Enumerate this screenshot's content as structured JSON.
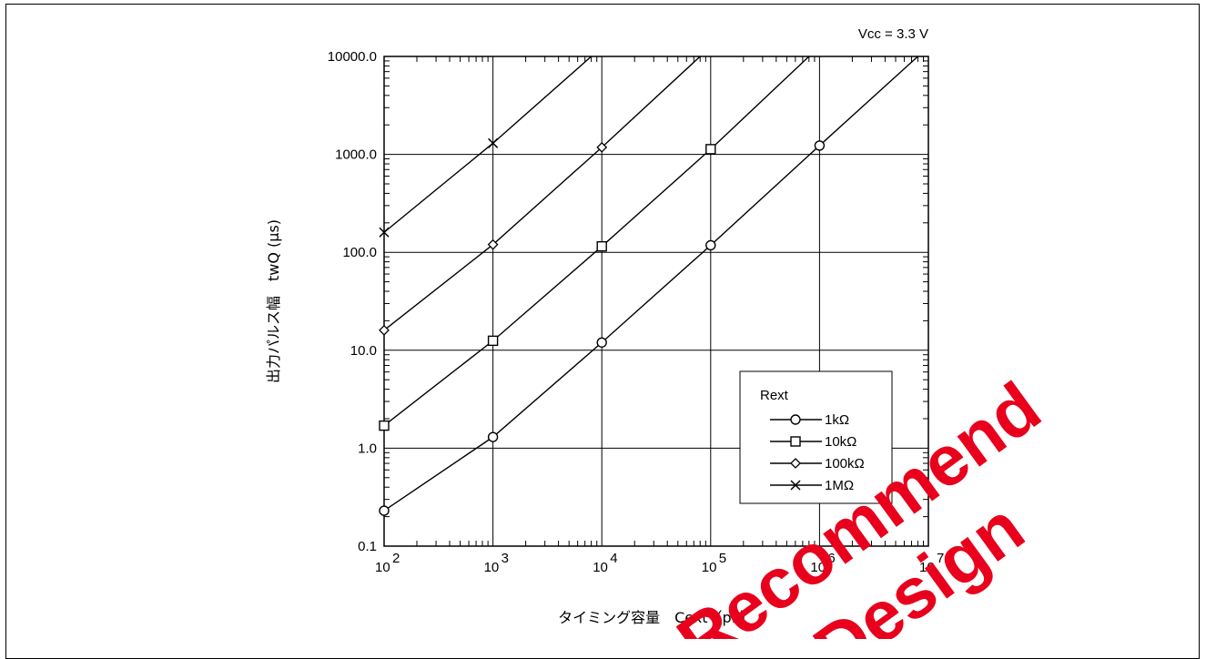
{
  "chart_data": {
    "type": "line",
    "title": "",
    "annotation": "Vcc = 3.3 V",
    "xlabel": "タイミング容量　Cext（pF）",
    "ylabel": "出力パルス幅　twQ (μs)",
    "xscale": "log",
    "yscale": "log",
    "xlim": [
      100,
      10000000
    ],
    "ylim": [
      0.1,
      10000
    ],
    "x_tick_labels": [
      {
        "base": "10",
        "exp": "2"
      },
      {
        "base": "10",
        "exp": "3"
      },
      {
        "base": "10",
        "exp": "4"
      },
      {
        "base": "10",
        "exp": "5"
      },
      {
        "base": "10",
        "exp": "6"
      },
      {
        "base": "10",
        "exp": "7"
      }
    ],
    "y_tick_labels": [
      "0.1",
      "1.0",
      "10.0",
      "100.0",
      "1000.0",
      "10000.0"
    ],
    "grid": true,
    "legend_title": "Rext",
    "legend_position": "lower-right",
    "series": [
      {
        "name": "1kΩ",
        "marker": "circle",
        "x": [
          100,
          1000,
          10000,
          100000,
          1000000,
          8000000
        ],
        "y": [
          0.23,
          1.3,
          12,
          118,
          1230,
          10000
        ]
      },
      {
        "name": "10kΩ",
        "marker": "square",
        "x": [
          100,
          1000,
          10000,
          100000,
          800000
        ],
        "y": [
          1.7,
          12.5,
          115,
          1130,
          10000
        ]
      },
      {
        "name": "100kΩ",
        "marker": "diamond",
        "x": [
          100,
          1000,
          10000,
          80000
        ],
        "y": [
          16,
          120,
          1180,
          10000
        ]
      },
      {
        "name": "1MΩ",
        "marker": "cross",
        "x": [
          100,
          1000,
          8000
        ],
        "y": [
          160,
          1300,
          10000
        ]
      }
    ]
  },
  "watermark": {
    "text_1": "Recommend",
    "text_2": "Design",
    "color": "#e8001c"
  }
}
